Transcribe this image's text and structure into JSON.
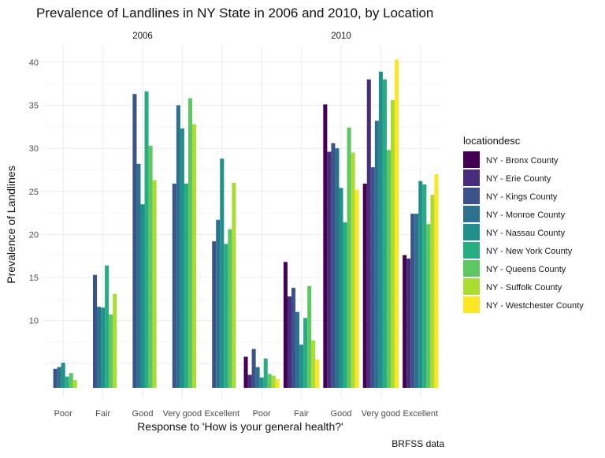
{
  "chart_data": {
    "type": "bar",
    "title": "Prevalence of Landlines in NY State in 2006 and 2010, by Location",
    "xlabel": "Response to 'How is your general health?'",
    "ylabel": "Prevalence of Landlines",
    "caption": "BRFSS data",
    "legend_title": "locationdesc",
    "legend_position": "right",
    "grid": true,
    "ylim": [
      1,
      42
    ],
    "yticks": [
      10,
      15,
      20,
      25,
      30,
      35,
      40
    ],
    "categories": [
      "Poor",
      "Fair",
      "Good",
      "Very good",
      "Excellent"
    ],
    "series_names": [
      "NY - Bronx County",
      "NY - Erie County",
      "NY - Kings County",
      "NY - Monroe County",
      "NY - Nassau County",
      "NY - New York County",
      "NY - Queens County",
      "NY - Suffolk County",
      "NY - Westchester County"
    ],
    "series_colors": [
      "#440154",
      "#472D7B",
      "#3B528B",
      "#2C728E",
      "#21908C",
      "#27AD81",
      "#5DC863",
      "#AADC32",
      "#FDE725"
    ],
    "panels": [
      {
        "label": "2006",
        "series": [
          {
            "name": "NY - Bronx County",
            "values": [
              null,
              null,
              null,
              null,
              null
            ]
          },
          {
            "name": "NY - Erie County",
            "values": [
              null,
              null,
              null,
              null,
              null
            ]
          },
          {
            "name": "NY - Kings County",
            "values": [
              4.4,
              15.3,
              36.3,
              25.9,
              19.2
            ]
          },
          {
            "name": "NY - Monroe County",
            "values": [
              4.6,
              11.6,
              28.2,
              35.0,
              21.7
            ]
          },
          {
            "name": "NY - Nassau County",
            "values": [
              5.1,
              11.5,
              23.5,
              32.3,
              28.8
            ]
          },
          {
            "name": "NY - New York County",
            "values": [
              3.5,
              16.4,
              36.6,
              25.9,
              18.9
            ]
          },
          {
            "name": "NY - Queens County",
            "values": [
              3.9,
              10.7,
              30.3,
              35.8,
              20.6
            ]
          },
          {
            "name": "NY - Suffolk County",
            "values": [
              3.1,
              13.1,
              26.3,
              32.8,
              26.0
            ]
          },
          {
            "name": "NY - Westchester County",
            "values": [
              null,
              null,
              null,
              null,
              null
            ]
          }
        ]
      },
      {
        "label": "2010",
        "series": [
          {
            "name": "NY - Bronx County",
            "values": [
              5.8,
              16.8,
              35.1,
              25.9,
              17.6
            ]
          },
          {
            "name": "NY - Erie County",
            "values": [
              3.7,
              12.8,
              29.6,
              38.0,
              17.2
            ]
          },
          {
            "name": "NY - Kings County",
            "values": [
              6.7,
              13.8,
              30.6,
              27.8,
              22.4
            ]
          },
          {
            "name": "NY - Monroe County",
            "values": [
              4.6,
              11.0,
              30.0,
              33.2,
              22.4
            ]
          },
          {
            "name": "NY - Nassau County",
            "values": [
              3.4,
              7.2,
              25.4,
              38.9,
              26.2
            ]
          },
          {
            "name": "NY - New York County",
            "values": [
              5.6,
              10.3,
              21.4,
              38.0,
              25.8
            ]
          },
          {
            "name": "NY - Queens County",
            "values": [
              3.8,
              14.0,
              32.4,
              29.8,
              21.2
            ]
          },
          {
            "name": "NY - Suffolk County",
            "values": [
              3.6,
              7.7,
              29.5,
              35.6,
              24.6
            ]
          },
          {
            "name": "NY - Westchester County",
            "values": [
              3.2,
              5.5,
              25.2,
              40.3,
              27.0
            ]
          }
        ]
      }
    ]
  }
}
